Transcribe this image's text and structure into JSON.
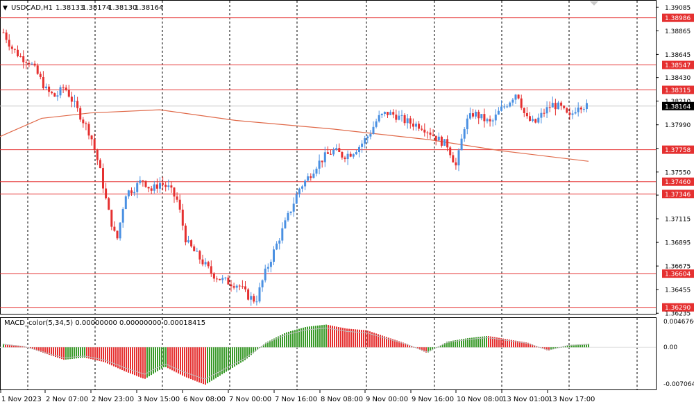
{
  "header": {
    "symbol": "USDCAD,H1",
    "ohlc": [
      "1.38133",
      "1.38174",
      "1.38130",
      "1.38164"
    ]
  },
  "colors": {
    "bull": "#4a90e2",
    "bear": "#e53030",
    "level_line": "#e53030",
    "ma_line": "#e06a4a",
    "macd_pos": "#e53030",
    "macd_neg": "#3a9a2a",
    "signal": "#c0c0c0",
    "grid": "#000000"
  },
  "price_axis": {
    "ticks": [
      "1.39085",
      "1.38865",
      "1.38645",
      "1.38430",
      "1.38210",
      "1.37990",
      "1.37770",
      "1.37550",
      "1.37335",
      "1.37115",
      "1.36895",
      "1.36675",
      "1.36455",
      "1.36235"
    ],
    "current_label": "1.38164",
    "level_labels": [
      "1.38986",
      "1.38547",
      "1.38315",
      "1.37758",
      "1.37460",
      "1.37346",
      "1.36604",
      "1.36290"
    ]
  },
  "macd": {
    "label": "MACD_color(5,34,5) 0.00000000 0.00000000 0.00018415",
    "ticks": [
      "0.0046766",
      "0.00",
      "-0.0070640"
    ]
  },
  "time_axis": {
    "labels": [
      "1 Nov 2023",
      "2 Nov 07:00",
      "2 Nov 23:00",
      "3 Nov 15:00",
      "6 Nov 08:00",
      "7 Nov 00:00",
      "7 Nov 16:00",
      "8 Nov 08:00",
      "9 Nov 00:00",
      "9 Nov 16:00",
      "10 Nov 08:00",
      "13 Nov 01:00",
      "13 Nov 17:00"
    ]
  },
  "chart_data": [
    {
      "type": "candlestick",
      "title": "USDCAD,H1",
      "ylim": [
        1.3623,
        1.391
      ],
      "x_labels": [
        "1 Nov 2023",
        "2 Nov 07:00",
        "2 Nov 23:00",
        "3 Nov 15:00",
        "6 Nov 08:00",
        "7 Nov 00:00",
        "7 Nov 16:00",
        "8 Nov 08:00",
        "9 Nov 00:00",
        "9 Nov 16:00",
        "10 Nov 08:00",
        "13 Nov 01:00",
        "13 Nov 17:00"
      ],
      "series": [
        {
          "name": "close",
          "values": [
            1.3885,
            1.387,
            1.3862,
            1.3858,
            1.3845,
            1.383,
            1.3825,
            1.3835,
            1.382,
            1.3805,
            1.379,
            1.376,
            1.372,
            1.369,
            1.3735,
            1.374,
            1.3748,
            1.3738,
            1.3745,
            1.374,
            1.3728,
            1.369,
            1.368,
            1.367,
            1.366,
            1.3655,
            1.3652,
            1.365,
            1.364,
            1.3635,
            1.366,
            1.368,
            1.37,
            1.372,
            1.374,
            1.375,
            1.3762,
            1.377,
            1.3775,
            1.377,
            1.3773,
            1.378,
            1.379,
            1.3805,
            1.381,
            1.3808,
            1.3803,
            1.38,
            1.3798,
            1.3792,
            1.3785,
            1.378,
            1.376,
            1.38,
            1.381,
            1.3805,
            1.38,
            1.3812,
            1.382,
            1.383,
            1.3805,
            1.38,
            1.381,
            1.3818,
            1.3815,
            1.3805,
            1.3818,
            1.3816
          ]
        },
        {
          "name": "moving average",
          "values": [
            1.3788,
            1.3805,
            1.381,
            1.3813,
            1.3803,
            1.3795,
            1.3785,
            1.3775,
            1.3765
          ]
        }
      ],
      "horizontal_levels": [
        1.38986,
        1.38547,
        1.38315,
        1.37758,
        1.3746,
        1.37346,
        1.36604,
        1.3629
      ],
      "current_price": 1.38164
    },
    {
      "type": "bar",
      "title": "MACD_color(5,34,5) 0.00000000 0.00000000 0.00018415",
      "ylim": [
        -0.007064,
        0.0046766
      ],
      "series": [
        {
          "name": "histogram",
          "values": [
            0.0006,
            0.0002,
            -0.001,
            -0.0022,
            -0.0018,
            -0.0026,
            -0.0042,
            -0.0056,
            -0.0034,
            -0.0052,
            -0.0066,
            -0.0044,
            -0.0022,
            0.0008,
            0.0026,
            0.0036,
            0.004,
            0.0033,
            0.003,
            0.0018,
            0.0006,
            -0.001,
            0.001,
            0.0016,
            0.002,
            0.0014,
            0.0008,
            -0.0006,
            0.0004,
            0.0006
          ]
        }
      ]
    }
  ]
}
